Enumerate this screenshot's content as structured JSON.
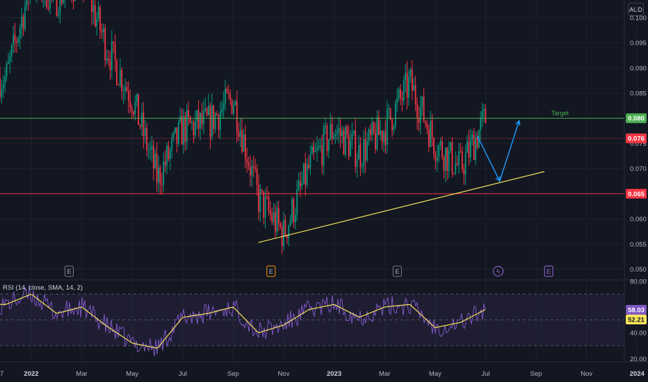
{
  "app": {
    "currency_label": "AUD"
  },
  "price_axis": {
    "ticks": [
      "0.100",
      "0.095",
      "0.090",
      "0.085",
      "0.075",
      "0.070",
      "0.060",
      "0.055",
      "0.050"
    ],
    "ylim": [
      0.048,
      0.1035
    ]
  },
  "rsi_axis": {
    "ticks": [
      "80.00",
      "40.00",
      "20.00"
    ],
    "ylim": [
      18,
      81
    ]
  },
  "time_axis": {
    "labels": [
      "7",
      "2022",
      "Mar",
      "May",
      "Jul",
      "Sep",
      "Nov",
      "2023",
      "Mar",
      "May",
      "Jul",
      "Sep",
      "Nov",
      "2024"
    ]
  },
  "price_labels": {
    "target": {
      "value": "0.080",
      "color": "#4caf50",
      "text": "Target"
    },
    "last": {
      "value": "0.076",
      "color": "#f23645"
    },
    "support": {
      "value": "0.065",
      "color": "#f23645"
    }
  },
  "rsi": {
    "legend": "RSI (14, close, SMA, 14, 2)",
    "value_label": "58.03",
    "value_color": "#7e57c2",
    "sma_label": "52.21",
    "sma_color": "#f7e45a"
  },
  "event_markers": [
    {
      "glyph": "E",
      "date": "Feb 2022",
      "style": "neutral"
    },
    {
      "glyph": "E",
      "date": "Oct 2022",
      "style": "highlight"
    },
    {
      "glyph": "E",
      "date": "Mar 2023",
      "style": "neutral"
    },
    {
      "glyph": "ϟ",
      "date": "Jul 2023",
      "style": "purple"
    },
    {
      "glyph": "E",
      "date": "Sep 2023",
      "style": "purple"
    }
  ],
  "chart_data": {
    "type": "candlestick",
    "title": "",
    "x_range": [
      "Dec 2021",
      "Jan 2024"
    ],
    "horizontal_lines": [
      {
        "price": 0.08,
        "color": "#4caf50",
        "label": "Target"
      },
      {
        "price": 0.076,
        "color": "#f23645",
        "style": "dotted"
      },
      {
        "price": 0.065,
        "color": "#f23645"
      }
    ],
    "trendline": {
      "from": {
        "date": "Oct 2022",
        "price": 0.0553
      },
      "to": {
        "date": "Sep 2023",
        "price": 0.0694
      },
      "color": "#f7e45a"
    },
    "projection_arrow": {
      "color": "#2196f3",
      "points": [
        {
          "date": "Jul 2023",
          "price": 0.0765
        },
        {
          "date": "Aug 2023",
          "price": 0.0675
        },
        {
          "date": "Aug 2023",
          "price": 0.0795
        }
      ]
    },
    "price_series": [
      {
        "t": "Dec 2021",
        "v": 0.088
      },
      {
        "t": "Jan 2022",
        "v": 0.107
      },
      {
        "t": "Feb 2022",
        "v": 0.104
      },
      {
        "t": "Mar 2022",
        "v": 0.108
      },
      {
        "t": "Apr 2022",
        "v": 0.094
      },
      {
        "t": "May 2022",
        "v": 0.084
      },
      {
        "t": "Jun 2022",
        "v": 0.068
      },
      {
        "t": "Jul 2022",
        "v": 0.078
      },
      {
        "t": "Aug 2022",
        "v": 0.079
      },
      {
        "t": "Sep 2022",
        "v": 0.084
      },
      {
        "t": "Oct 2022",
        "v": 0.064
      },
      {
        "t": "Nov 2022",
        "v": 0.057
      },
      {
        "t": "Dec 2022",
        "v": 0.07
      },
      {
        "t": "Jan 2023",
        "v": 0.078
      },
      {
        "t": "Feb 2023",
        "v": 0.073
      },
      {
        "t": "Mar 2023",
        "v": 0.078
      },
      {
        "t": "Apr 2023",
        "v": 0.087
      },
      {
        "t": "May 2023",
        "v": 0.075
      },
      {
        "t": "Jun 2023",
        "v": 0.07
      },
      {
        "t": "Jul 2023",
        "v": 0.08
      }
    ],
    "rsi_series": [
      {
        "t": "Dec 2021",
        "v": 62
      },
      {
        "t": "Jan 2022",
        "v": 70
      },
      {
        "t": "Feb 2022",
        "v": 55
      },
      {
        "t": "Mar 2022",
        "v": 60
      },
      {
        "t": "Apr 2022",
        "v": 45
      },
      {
        "t": "May 2022",
        "v": 32
      },
      {
        "t": "Jun 2022",
        "v": 28
      },
      {
        "t": "Jul 2022",
        "v": 52
      },
      {
        "t": "Aug 2022",
        "v": 55
      },
      {
        "t": "Sep 2022",
        "v": 60
      },
      {
        "t": "Oct 2022",
        "v": 40
      },
      {
        "t": "Nov 2022",
        "v": 46
      },
      {
        "t": "Dec 2022",
        "v": 58
      },
      {
        "t": "Jan 2023",
        "v": 62
      },
      {
        "t": "Feb 2023",
        "v": 52
      },
      {
        "t": "Mar 2023",
        "v": 60
      },
      {
        "t": "Apr 2023",
        "v": 62
      },
      {
        "t": "May 2023",
        "v": 44
      },
      {
        "t": "Jun 2023",
        "v": 48
      },
      {
        "t": "Jul 2023",
        "v": 58.03
      }
    ],
    "rsi_bands": {
      "upper": 70,
      "middle": 50,
      "lower": 30
    }
  }
}
